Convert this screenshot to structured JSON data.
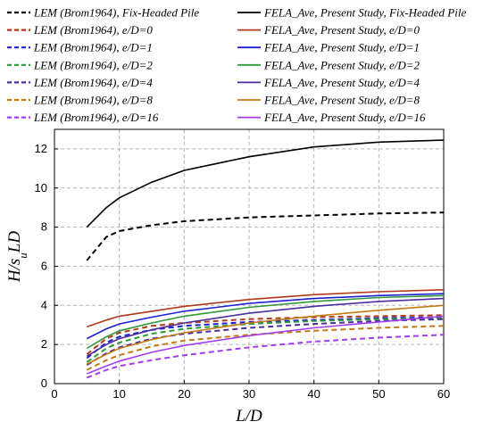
{
  "chart_data": {
    "type": "line",
    "title": "",
    "xlabel": "L/D",
    "ylabel": "H/s_u LD",
    "xlim": [
      0,
      60
    ],
    "ylim": [
      0,
      13
    ],
    "xticks": [
      0,
      10,
      20,
      30,
      40,
      50,
      60
    ],
    "yticks": [
      0,
      2,
      4,
      6,
      8,
      10,
      12
    ],
    "grid": true,
    "legend_position": "top",
    "x": [
      5,
      8,
      10,
      15,
      20,
      30,
      40,
      50,
      60
    ],
    "series": [
      {
        "name": "LEM (Brom1964), Fix-Headed Pile",
        "color": "#000000",
        "dashed": true,
        "values": [
          6.3,
          7.5,
          7.8,
          8.1,
          8.3,
          8.5,
          8.6,
          8.7,
          8.75
        ]
      },
      {
        "name": "LEM (Brom1964), e/D=0",
        "color": "#b03a1c",
        "dashed": true,
        "values": [
          1.5,
          2.3,
          2.6,
          2.95,
          3.1,
          3.3,
          3.4,
          3.45,
          3.5
        ]
      },
      {
        "name": "LEM (Brom1964), e/D=1",
        "color": "#1f1fd6",
        "dashed": true,
        "values": [
          1.3,
          2.1,
          2.4,
          2.75,
          2.95,
          3.15,
          3.25,
          3.35,
          3.4
        ]
      },
      {
        "name": "LEM (Brom1964), e/D=2",
        "color": "#2e9a3a",
        "dashed": true,
        "values": [
          1.1,
          1.8,
          2.1,
          2.55,
          2.8,
          3.05,
          3.2,
          3.3,
          3.35
        ]
      },
      {
        "name": "LEM (Brom1964), e/D=4",
        "color": "#4b2d9e",
        "dashed": true,
        "values": [
          0.95,
          1.55,
          1.85,
          2.3,
          2.55,
          2.85,
          3.05,
          3.2,
          3.3
        ]
      },
      {
        "name": "LEM (Brom1964), e/D=8",
        "color": "#c47a12",
        "dashed": true,
        "values": [
          0.7,
          1.2,
          1.45,
          1.9,
          2.2,
          2.5,
          2.7,
          2.85,
          2.95
        ]
      },
      {
        "name": "LEM (Brom1964), e/D=16",
        "color": "#a33cf0",
        "dashed": true,
        "values": [
          0.3,
          0.7,
          0.9,
          1.2,
          1.45,
          1.85,
          2.15,
          2.35,
          2.5
        ]
      },
      {
        "name": "FELA_Ave, Present Study, Fix-Headed Pile",
        "color": "#000000",
        "dashed": false,
        "values": [
          8.0,
          9.0,
          9.5,
          10.3,
          10.9,
          11.6,
          12.1,
          12.35,
          12.45
        ]
      },
      {
        "name": "FELA_Ave, Present Study, e/D=0",
        "color": "#b03a1c",
        "dashed": false,
        "values": [
          2.9,
          3.25,
          3.45,
          3.7,
          3.95,
          4.3,
          4.55,
          4.7,
          4.8
        ]
      },
      {
        "name": "FELA_Ave, Present Study, e/D=1",
        "color": "#1f1fd6",
        "dashed": false,
        "values": [
          2.3,
          2.8,
          3.05,
          3.4,
          3.7,
          4.1,
          4.35,
          4.5,
          4.6
        ]
      },
      {
        "name": "FELA_Ave, Present Study, e/D=2",
        "color": "#2e9a3a",
        "dashed": false,
        "values": [
          1.8,
          2.4,
          2.7,
          3.1,
          3.45,
          3.9,
          4.2,
          4.4,
          4.5
        ]
      },
      {
        "name": "FELA_Ave, Present Study, e/D=4",
        "color": "#4b2d9e",
        "dashed": false,
        "values": [
          1.4,
          2.0,
          2.3,
          2.75,
          3.1,
          3.6,
          3.95,
          4.2,
          4.35
        ]
      },
      {
        "name": "FELA_Ave, Present Study, e/D=8",
        "color": "#c47a12",
        "dashed": false,
        "values": [
          1.0,
          1.5,
          1.8,
          2.25,
          2.6,
          3.1,
          3.45,
          3.75,
          4.0
        ]
      },
      {
        "name": "FELA_Ave, Present Study, e/D=16",
        "color": "#a33cf0",
        "dashed": false,
        "values": [
          0.5,
          0.9,
          1.15,
          1.6,
          1.95,
          2.45,
          2.85,
          3.15,
          3.45
        ]
      }
    ]
  }
}
